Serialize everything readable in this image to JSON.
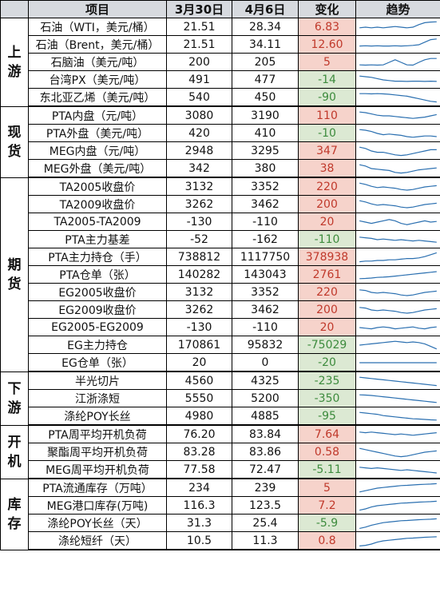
{
  "headers": {
    "item": "项目",
    "d1": "3月30日",
    "d2": "4月6日",
    "change": "变化",
    "trend": "趋势"
  },
  "colors": {
    "header_bg": "#d7dadf",
    "pos_bg": "#f6d3cb",
    "pos_text": "#c0392b",
    "neg_bg": "#dce9d3",
    "neg_text": "#3d8b3d",
    "spark": "#2a6fb0"
  },
  "groups": [
    {
      "cat": [
        "上",
        "游"
      ],
      "rows": [
        {
          "name": "石油（WTI，美元/桶）",
          "d1": "21.51",
          "d2": "28.34",
          "chg": "6.83",
          "dir": "pos",
          "spark": [
            0.55,
            0.5,
            0.55,
            0.5,
            0.55,
            0.5,
            0.45,
            0.5,
            0.55,
            0.5,
            0.3,
            0.15,
            0.1,
            0.08
          ]
        },
        {
          "name": "石油（Brent，美元/桶）",
          "d1": "21.51",
          "d2": "34.11",
          "chg": "12.60",
          "dir": "pos",
          "spark": [
            0.6,
            0.58,
            0.6,
            0.58,
            0.6,
            0.6,
            0.58,
            0.6,
            0.58,
            0.55,
            0.5,
            0.3,
            0.1,
            0.05
          ]
        },
        {
          "name": "石脑油（美元/吨）",
          "d1": "200",
          "d2": "205",
          "chg": "5",
          "dir": "pos",
          "spark": [
            0.7,
            0.72,
            0.7,
            0.72,
            0.7,
            0.5,
            0.3,
            0.5,
            0.7,
            0.72,
            0.5,
            0.3,
            0.2,
            0.2
          ]
        },
        {
          "name": "台湾PX（美元/吨）",
          "d1": "491",
          "d2": "477",
          "chg": "-14",
          "dir": "neg",
          "spark": [
            0.2,
            0.25,
            0.3,
            0.4,
            0.5,
            0.55,
            0.6,
            0.6,
            0.62,
            0.6,
            0.6,
            0.62,
            0.6,
            0.62
          ]
        },
        {
          "name": "东北亚乙烯（美元/吨）",
          "d1": "540",
          "d2": "450",
          "chg": "-90",
          "dir": "neg",
          "spark": [
            0.2,
            0.2,
            0.22,
            0.2,
            0.22,
            0.25,
            0.3,
            0.35,
            0.4,
            0.5,
            0.6,
            0.7,
            0.8,
            0.85
          ]
        }
      ]
    },
    {
      "cat": [
        "现",
        "货"
      ],
      "rows": [
        {
          "name": "PTA内盘（元/吨）",
          "d1": "3080",
          "d2": "3190",
          "chg": "110",
          "dir": "pos",
          "spark": [
            0.2,
            0.25,
            0.35,
            0.45,
            0.5,
            0.5,
            0.55,
            0.6,
            0.65,
            0.7,
            0.65,
            0.6,
            0.5,
            0.4
          ]
        },
        {
          "name": "PTA外盘（美元/吨）",
          "d1": "420",
          "d2": "410",
          "chg": "-10",
          "dir": "neg",
          "spark": [
            0.2,
            0.25,
            0.35,
            0.5,
            0.6,
            0.55,
            0.6,
            0.65,
            0.75,
            0.8,
            0.75,
            0.7,
            0.7,
            0.75
          ]
        },
        {
          "name": "MEG内盘（元/吨）",
          "d1": "2948",
          "d2": "3295",
          "chg": "347",
          "dir": "pos",
          "spark": [
            0.2,
            0.3,
            0.5,
            0.6,
            0.6,
            0.7,
            0.8,
            0.85,
            0.8,
            0.7,
            0.6,
            0.5,
            0.4,
            0.4
          ]
        },
        {
          "name": "MEG外盘（美元/吨）",
          "d1": "342",
          "d2": "380",
          "chg": "38",
          "dir": "pos",
          "spark": [
            0.2,
            0.3,
            0.5,
            0.55,
            0.6,
            0.65,
            0.8,
            0.85,
            0.8,
            0.7,
            0.6,
            0.55,
            0.5,
            0.45
          ]
        }
      ]
    },
    {
      "cat": [
        "期",
        "货"
      ],
      "rows": [
        {
          "name": "TA2005收盘价",
          "d1": "3132",
          "d2": "3352",
          "chg": "220",
          "dir": "pos",
          "spark": [
            0.2,
            0.3,
            0.45,
            0.55,
            0.5,
            0.55,
            0.6,
            0.7,
            0.75,
            0.7,
            0.6,
            0.5,
            0.45,
            0.4
          ]
        },
        {
          "name": "TA2009收盘价",
          "d1": "3262",
          "d2": "3462",
          "chg": "200",
          "dir": "pos",
          "spark": [
            0.2,
            0.3,
            0.45,
            0.55,
            0.5,
            0.55,
            0.6,
            0.7,
            0.75,
            0.7,
            0.6,
            0.5,
            0.45,
            0.4
          ]
        },
        {
          "name": "TA2005-TA2009",
          "d1": "-130",
          "d2": "-110",
          "chg": "20",
          "dir": "pos",
          "spark": [
            0.4,
            0.5,
            0.6,
            0.5,
            0.4,
            0.3,
            0.4,
            0.6,
            0.7,
            0.6,
            0.5,
            0.4,
            0.5,
            0.45
          ]
        },
        {
          "name": "PTA主力基差",
          "d1": "-52",
          "d2": "-162",
          "chg": "-110",
          "dir": "neg",
          "spark": [
            0.3,
            0.35,
            0.4,
            0.5,
            0.45,
            0.5,
            0.55,
            0.5,
            0.55,
            0.6,
            0.55,
            0.6,
            0.65,
            0.7
          ]
        },
        {
          "name": "PTA主力持仓（手）",
          "d1": "738812",
          "d2": "1117750",
          "chg": "378938",
          "dir": "pos",
          "spark": [
            0.85,
            0.8,
            0.8,
            0.75,
            0.75,
            0.7,
            0.7,
            0.65,
            0.6,
            0.6,
            0.55,
            0.45,
            0.3,
            0.15
          ]
        },
        {
          "name": "PTA仓单（张）",
          "d1": "140282",
          "d2": "143043",
          "chg": "2761",
          "dir": "pos",
          "spark": [
            0.8,
            0.78,
            0.75,
            0.7,
            0.68,
            0.65,
            0.6,
            0.55,
            0.5,
            0.45,
            0.4,
            0.35,
            0.3,
            0.25
          ]
        },
        {
          "name": "EG2005收盘价",
          "d1": "3132",
          "d2": "3352",
          "chg": "220",
          "dir": "pos",
          "spark": [
            0.3,
            0.35,
            0.5,
            0.55,
            0.5,
            0.55,
            0.6,
            0.7,
            0.75,
            0.7,
            0.6,
            0.5,
            0.45,
            0.4
          ]
        },
        {
          "name": "EG2009收盘价",
          "d1": "3262",
          "d2": "3462",
          "chg": "200",
          "dir": "pos",
          "spark": [
            0.3,
            0.35,
            0.5,
            0.55,
            0.5,
            0.55,
            0.6,
            0.7,
            0.75,
            0.7,
            0.6,
            0.5,
            0.45,
            0.4
          ]
        },
        {
          "name": "EG2005-EG2009",
          "d1": "-130",
          "d2": "-110",
          "chg": "20",
          "dir": "pos",
          "spark": [
            0.5,
            0.55,
            0.6,
            0.5,
            0.45,
            0.5,
            0.6,
            0.55,
            0.5,
            0.45,
            0.55,
            0.6,
            0.5,
            0.45
          ]
        },
        {
          "name": "EG主力持仓",
          "d1": "170861",
          "d2": "95832",
          "chg": "-75029",
          "dir": "neg",
          "spark": [
            0.5,
            0.45,
            0.4,
            0.35,
            0.3,
            0.25,
            0.2,
            0.25,
            0.3,
            0.25,
            0.3,
            0.4,
            0.6,
            0.8
          ]
        },
        {
          "name": "EG仓单（张）",
          "d1": "20",
          "d2": "0",
          "chg": "-20",
          "dir": "neg",
          "spark": [
            0.5,
            0.5,
            0.5,
            0.5,
            0.5,
            0.5,
            0.5,
            0.5,
            0.5,
            0.5,
            0.5,
            0.5,
            0.5,
            0.5
          ]
        }
      ]
    },
    {
      "cat": [
        "下",
        "游"
      ],
      "rows": [
        {
          "name": "半光切片",
          "d1": "4560",
          "d2": "4325",
          "chg": "-235",
          "dir": "neg",
          "spark": [
            0.2,
            0.25,
            0.3,
            0.35,
            0.4,
            0.45,
            0.5,
            0.55,
            0.6,
            0.65,
            0.7,
            0.75,
            0.8,
            0.85
          ]
        },
        {
          "name": "江浙涤短",
          "d1": "5550",
          "d2": "5200",
          "chg": "-350",
          "dir": "neg",
          "spark": [
            0.2,
            0.22,
            0.25,
            0.3,
            0.35,
            0.4,
            0.45,
            0.5,
            0.55,
            0.6,
            0.65,
            0.7,
            0.75,
            0.8
          ]
        },
        {
          "name": "涤纶POY长丝",
          "d1": "4980",
          "d2": "4885",
          "chg": "-95",
          "dir": "neg",
          "spark": [
            0.2,
            0.25,
            0.3,
            0.35,
            0.45,
            0.5,
            0.55,
            0.6,
            0.65,
            0.7,
            0.72,
            0.75,
            0.78,
            0.8
          ]
        }
      ]
    },
    {
      "cat": [
        "开",
        "机"
      ],
      "rows": [
        {
          "name": "PTA周平均开机负荷",
          "d1": "76.20",
          "d2": "83.84",
          "chg": "7.64",
          "dir": "pos",
          "spark": [
            0.3,
            0.35,
            0.3,
            0.35,
            0.4,
            0.45,
            0.5,
            0.45,
            0.5,
            0.55,
            0.5,
            0.45,
            0.4,
            0.35
          ]
        },
        {
          "name": "聚酯周平均开机负荷",
          "d1": "83.28",
          "d2": "83.86",
          "chg": "0.58",
          "dir": "pos",
          "spark": [
            0.2,
            0.3,
            0.4,
            0.5,
            0.6,
            0.7,
            0.8,
            0.85,
            0.8,
            0.7,
            0.6,
            0.5,
            0.45,
            0.4
          ]
        },
        {
          "name": "MEG周平均开机负荷",
          "d1": "77.58",
          "d2": "72.47",
          "chg": "-5.11",
          "dir": "neg",
          "spark": [
            0.3,
            0.35,
            0.4,
            0.35,
            0.4,
            0.45,
            0.5,
            0.55,
            0.5,
            0.55,
            0.6,
            0.65,
            0.7,
            0.75
          ]
        }
      ]
    },
    {
      "cat": [
        "库",
        "存"
      ],
      "rows": [
        {
          "name": "PTA流通库存（万吨）",
          "d1": "234",
          "d2": "239",
          "chg": "5",
          "dir": "pos",
          "spark": [
            0.8,
            0.7,
            0.6,
            0.5,
            0.45,
            0.4,
            0.35,
            0.3,
            0.28,
            0.25,
            0.22,
            0.2,
            0.18,
            0.15
          ]
        },
        {
          "name": "MEG港口库存(万吨)",
          "d1": "116.3",
          "d2": "123.5",
          "chg": "7.2",
          "dir": "pos",
          "spark": [
            0.85,
            0.75,
            0.6,
            0.5,
            0.45,
            0.4,
            0.35,
            0.3,
            0.28,
            0.25,
            0.22,
            0.2,
            0.18,
            0.15
          ]
        },
        {
          "name": "涤纶POY长丝（天）",
          "d1": "31.3",
          "d2": "25.4",
          "chg": "-5.9",
          "dir": "neg",
          "spark": [
            0.9,
            0.8,
            0.65,
            0.55,
            0.45,
            0.4,
            0.35,
            0.3,
            0.28,
            0.25,
            0.22,
            0.2,
            0.18,
            0.15
          ]
        },
        {
          "name": "涤纶短纤（天）",
          "d1": "10.5",
          "d2": "11.3",
          "chg": "0.8",
          "dir": "pos",
          "spark": [
            0.9,
            0.85,
            0.75,
            0.6,
            0.5,
            0.45,
            0.4,
            0.35,
            0.3,
            0.28,
            0.25,
            0.22,
            0.2,
            0.18
          ]
        }
      ]
    }
  ]
}
